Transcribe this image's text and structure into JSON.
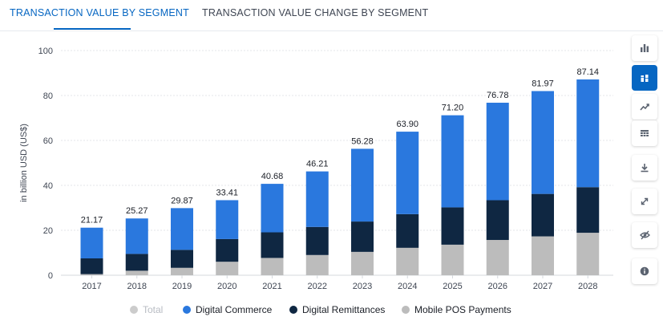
{
  "tabs": [
    {
      "label": "TRANSACTION VALUE BY SEGMENT",
      "active": true
    },
    {
      "label": "TRANSACTION VALUE CHANGE BY SEGMENT",
      "active": false
    }
  ],
  "toolbar": {
    "icons": [
      "bar-chart-icon",
      "stacked-bar-chart-icon",
      "line-chart-icon",
      "table-icon",
      "download-icon",
      "fullscreen-icon",
      "hide-icon",
      "info-icon"
    ],
    "active_index": 1
  },
  "colors": {
    "digital_commerce": "#2a78de",
    "digital_remittances": "#0f2742",
    "mobile_pos": "#bcbcbc",
    "total": "#cccccc"
  },
  "chart_data": {
    "type": "bar",
    "stacked": true,
    "categories": [
      "2017",
      "2018",
      "2019",
      "2020",
      "2021",
      "2022",
      "2023",
      "2024",
      "2025",
      "2026",
      "2027",
      "2028"
    ],
    "series": [
      {
        "name": "Mobile POS Payments",
        "values": [
          0.5,
          2.0,
          3.3,
          6.0,
          7.7,
          9.0,
          10.4,
          12.2,
          13.6,
          15.7,
          17.3,
          18.9
        ]
      },
      {
        "name": "Digital Remittances",
        "values": [
          7.0,
          7.5,
          8.0,
          10.1,
          11.4,
          12.5,
          13.5,
          15.0,
          16.6,
          17.7,
          18.9,
          20.3
        ]
      },
      {
        "name": "Digital Commerce",
        "values": [
          13.67,
          15.77,
          18.57,
          17.31,
          21.58,
          24.71,
          32.38,
          36.7,
          41.0,
          43.38,
          45.77,
          47.94
        ]
      }
    ],
    "totals": [
      "21.17",
      "25.27",
      "29.87",
      "33.41",
      "40.68",
      "46.21",
      "56.28",
      "63.90",
      "71.20",
      "76.78",
      "81.97",
      "87.14"
    ],
    "legend": [
      "Total",
      "Digital Commerce",
      "Digital Remittances",
      "Mobile POS Payments"
    ],
    "ylabel": "in billion USD (US$)",
    "xlabel": "",
    "ylim": [
      0,
      100
    ],
    "yticks": [
      0,
      20,
      40,
      60,
      80,
      100
    ],
    "grid": true,
    "legend_position": "bottom"
  }
}
